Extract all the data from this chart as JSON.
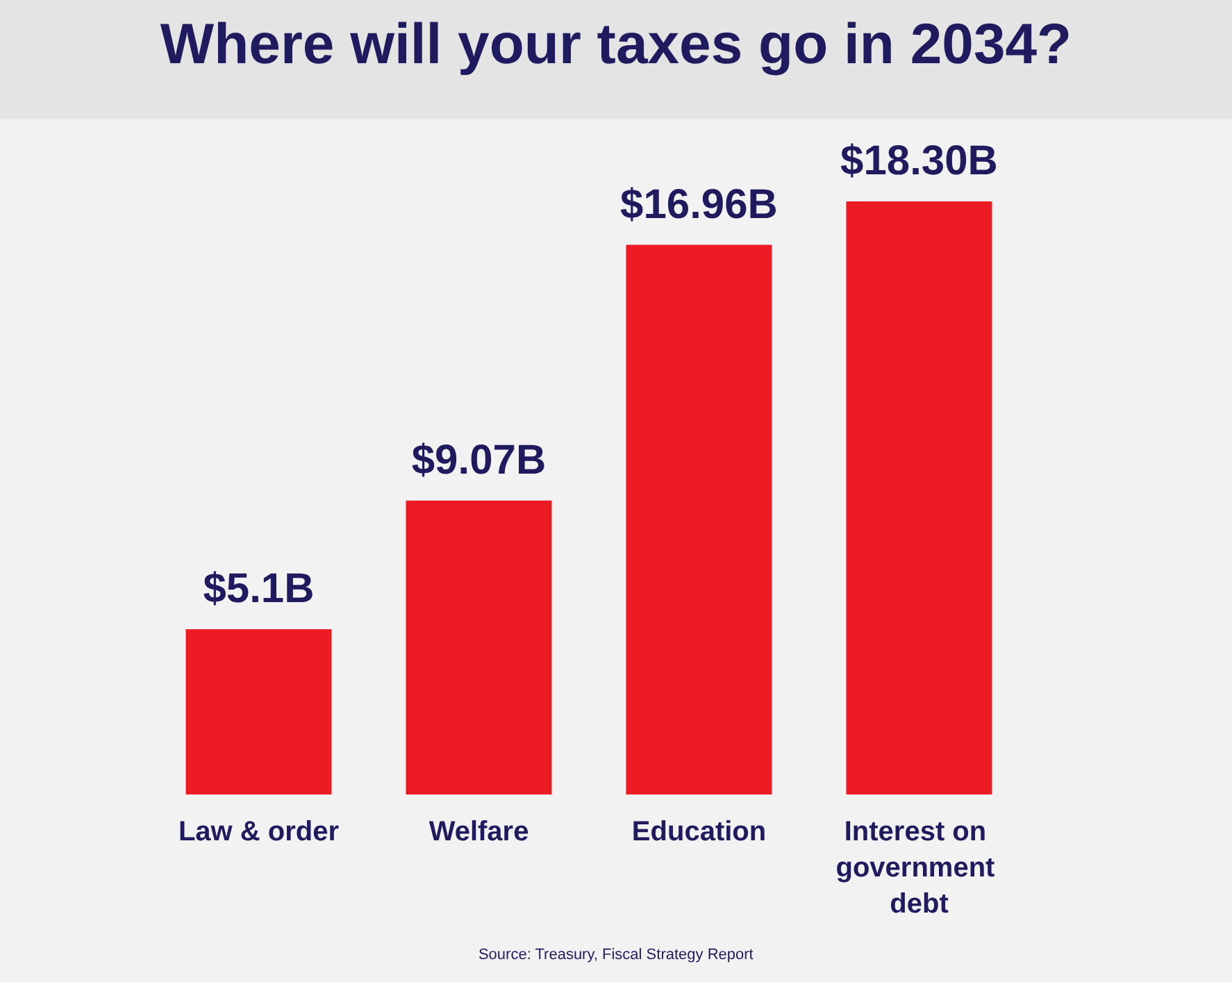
{
  "chart_data": {
    "type": "bar",
    "title": "Where will your taxes go in 2034?",
    "categories": [
      "Law & order",
      "Welfare",
      "Education",
      "Interest on government debt"
    ],
    "values": [
      5.1,
      9.07,
      16.96,
      18.3
    ],
    "value_labels": [
      "$5.1B",
      "$9.07B",
      "$16.96B",
      "$18.30B"
    ],
    "color": "#ed1c24",
    "annotations": [
      "Source: Treasury, Fiscal Strategy Report"
    ]
  }
}
